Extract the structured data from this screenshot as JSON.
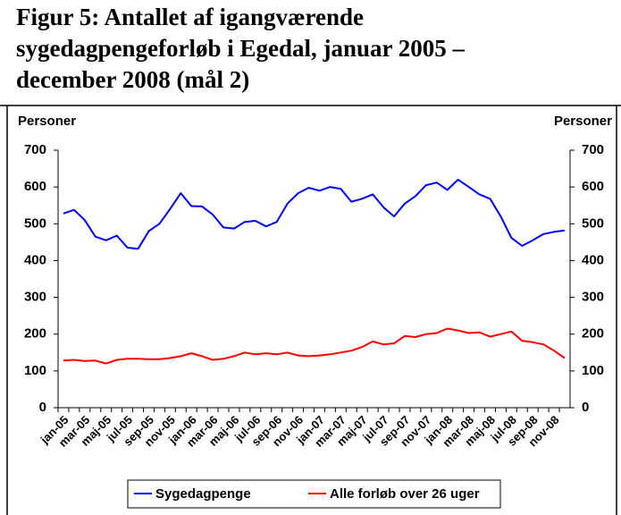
{
  "chart_data": {
    "type": "line",
    "title_lines": [
      "Figur 5: Antallet af igangværende",
      "sygedagpengeforløb i Egedal, januar 2005 –",
      "december 2008 (mål 2)"
    ],
    "ylabel": "Personer",
    "y2label": "Personer",
    "categories": [
      "jan-05",
      null,
      "mar-05",
      null,
      "maj-05",
      null,
      "jul-05",
      null,
      "sep-05",
      null,
      "nov-05",
      null,
      "jan-06",
      null,
      "mar-06",
      null,
      "maj-06",
      null,
      "jul-06",
      null,
      "sep-06",
      null,
      "nov-06",
      null,
      "jan-07",
      null,
      "mar-07",
      null,
      "maj-07",
      null,
      "jul-07",
      null,
      "sep-07",
      null,
      "nov-07",
      null,
      "jan-08",
      null,
      "mar-08",
      null,
      "maj-08",
      null,
      "jul-08",
      null,
      "sep-08",
      null,
      "nov-08",
      null
    ],
    "series": [
      {
        "name": "Sygedagpenge",
        "color": "#0000ff",
        "values": [
          528,
          538,
          510,
          465,
          455,
          468,
          435,
          432,
          480,
          500,
          540,
          583,
          548,
          547,
          525,
          490,
          487,
          505,
          508,
          493,
          505,
          555,
          583,
          598,
          590,
          600,
          595,
          560,
          568,
          580,
          545,
          520,
          555,
          575,
          605,
          612,
          592,
          620,
          600,
          580,
          568,
          520,
          462,
          440,
          455,
          472,
          478,
          482
        ]
      },
      {
        "name": "Alle forløb over 26 uger",
        "color": "#ff0000",
        "values": [
          128,
          130,
          127,
          128,
          120,
          130,
          133,
          133,
          132,
          132,
          135,
          140,
          148,
          140,
          130,
          133,
          140,
          150,
          145,
          148,
          145,
          150,
          142,
          140,
          142,
          145,
          150,
          155,
          165,
          180,
          172,
          175,
          195,
          192,
          200,
          203,
          215,
          210,
          203,
          205,
          193,
          200,
          207,
          182,
          178,
          172,
          155,
          135
        ]
      }
    ],
    "ylim": [
      0,
      700
    ],
    "yticks": [
      0,
      100,
      200,
      300,
      400,
      500,
      600,
      700
    ],
    "y2lim": [
      0,
      700
    ],
    "y2ticks": [
      0,
      100,
      200,
      300,
      400,
      500,
      600,
      700
    ],
    "grid": false,
    "legend": "bottom"
  }
}
